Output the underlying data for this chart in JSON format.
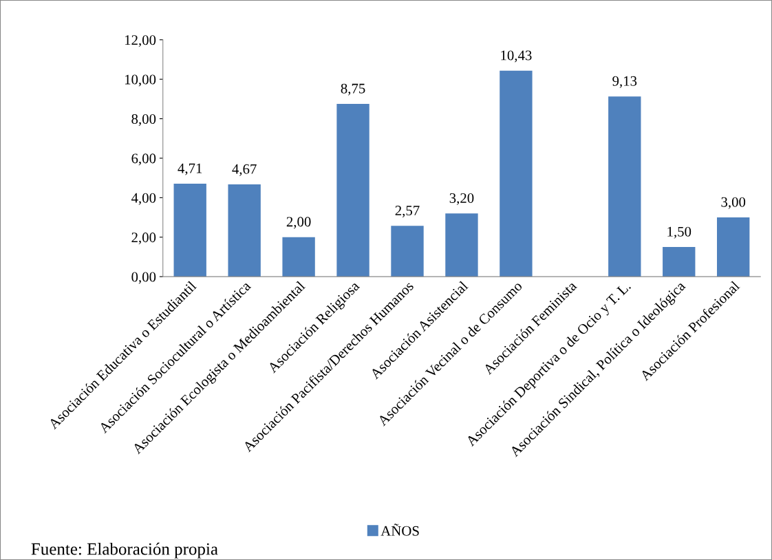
{
  "chart_data": {
    "type": "bar",
    "categories": [
      "Asociación Educativa o Estudiantil",
      "Asociación Sociocultural o Artística",
      "Asociación Ecologista o Medioambiental",
      "Asociación Religiosa",
      "Asociación Pacifista/Derechos Humanos",
      "Asociación Asistencial",
      "Asociación Vecinal o de Consumo",
      "Asociación Feminista",
      "Asociación Deportiva o de Ocio y T. L.",
      "Asociación Sindical, Política o Ideológica",
      "Asociación Profesional"
    ],
    "series": [
      {
        "name": "AÑOS",
        "color": "#4f81bd",
        "values": [
          4.71,
          4.67,
          2.0,
          8.75,
          2.57,
          3.2,
          10.43,
          null,
          9.13,
          1.5,
          3.0
        ],
        "value_labels": [
          "4,71",
          "4,67",
          "2,00",
          "8,75",
          "2,57",
          "3,20",
          "10,43",
          null,
          "9,13",
          "1,50",
          "3,00"
        ]
      }
    ],
    "ylim": [
      0,
      12
    ],
    "yticks": [
      {
        "value": 0,
        "label": "0,00"
      },
      {
        "value": 2,
        "label": "2,00"
      },
      {
        "value": 4,
        "label": "4,00"
      },
      {
        "value": 6,
        "label": "6,00"
      },
      {
        "value": 8,
        "label": "8,00"
      },
      {
        "value": 10,
        "label": "10,00"
      },
      {
        "value": 12,
        "label": "12,00"
      }
    ],
    "grid": false,
    "legend": "bottom",
    "annotations": [
      "Fuente: Elaboración propia"
    ]
  }
}
